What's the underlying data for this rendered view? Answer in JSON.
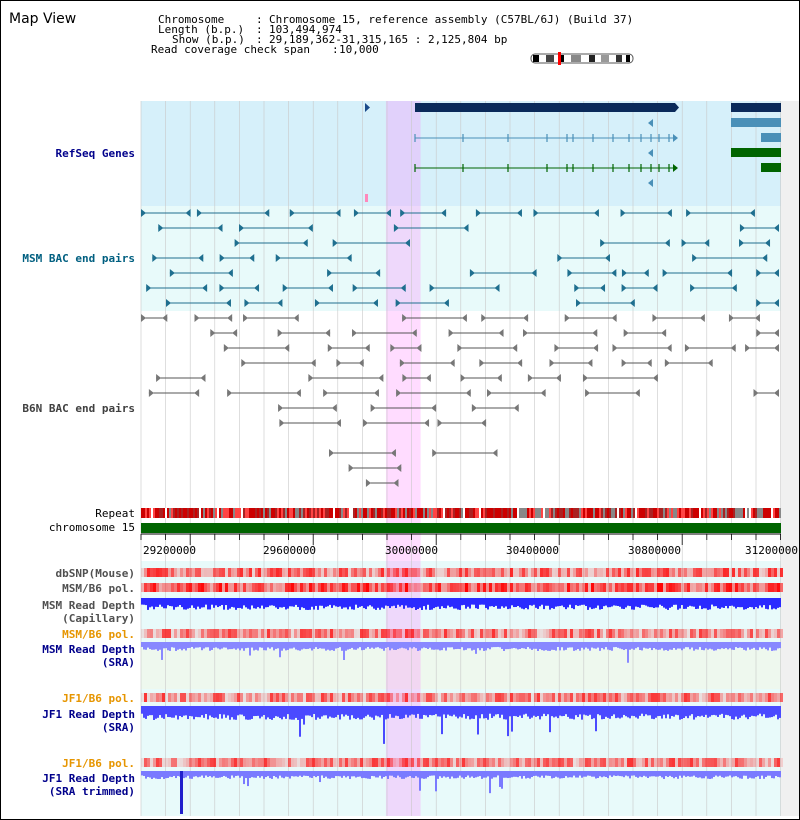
{
  "app": {
    "title": "Map View"
  },
  "header": {
    "chromosome_label": "Chromosome",
    "chromosome_value": "Chromosome 15, reference assembly (C57BL/6J) (Build 37)",
    "length_label": "Length (b.p.)",
    "length_value": "103,494,974",
    "show_label": "Show (b.p.)",
    "show_value": "29,189,362-31,315,165 : 2,125,804 bp",
    "coverage_label": "Read coverage check span",
    "coverage_value": "10,000"
  },
  "tracks": {
    "refseq": {
      "label": "RefSeq Genes",
      "color": "#00008b"
    },
    "msm_bac": {
      "label": "MSM BAC end pairs",
      "color": "#005f80"
    },
    "b6n_bac": {
      "label": "B6N BAC end pairs",
      "color": "#404040"
    },
    "repeat": {
      "label": "Repeat"
    },
    "chrom": {
      "label": "chromosome 15",
      "color": "#006400"
    },
    "dbsnp": {
      "label": "dbSNP(Mouse)"
    },
    "msm_b6_pol": {
      "label": "MSM/B6 pol."
    },
    "msm_depth_cap": {
      "label1": "MSM Read Depth",
      "label2": "(Capillary)"
    },
    "msm_b6_pol2": {
      "label": "MSM/B6 pol.",
      "color": "#e69500"
    },
    "msm_depth_sra": {
      "label1": "MSM Read Depth",
      "label2": "(SRA)"
    },
    "jf1_b6_pol": {
      "label": "JF1/B6 pol.",
      "color": "#e69500"
    },
    "jf1_depth_sra": {
      "label1": "JF1 Read Depth",
      "label2": "(SRA)"
    },
    "jf1_b6_pol2": {
      "label": "JF1/B6 pol.",
      "color": "#e69500"
    },
    "jf1_depth_trim": {
      "label1": "JF1 Read Depth",
      "label2": "(SRA trimmed)"
    }
  },
  "axis": {
    "ticks": [
      "29200000",
      "29600000",
      "30000000",
      "30400000",
      "30800000",
      "31200000"
    ],
    "start": 29189362,
    "end": 31315165,
    "highlight": [
      30003000,
      30118000
    ]
  },
  "colors": {
    "accent_blue": "#00008b",
    "highlight": "#ff80ff",
    "snp_red": "#ff0000",
    "depth_blue": "#0000ff",
    "chrom_green": "#006400"
  }
}
